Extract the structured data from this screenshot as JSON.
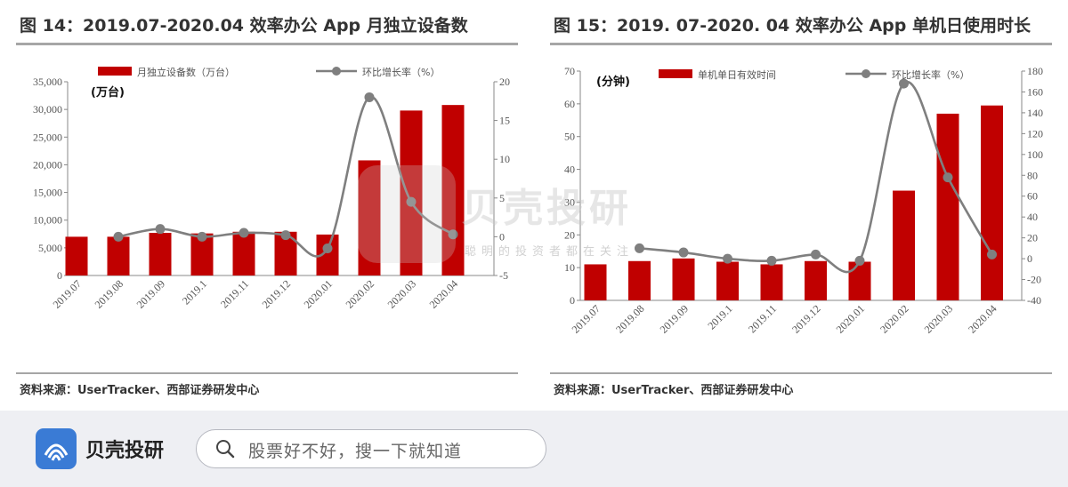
{
  "colors": {
    "bar": "#c00000",
    "line": "#7f7f7f",
    "axis": "#888888"
  },
  "watermark": {
    "name": "贝壳投研",
    "slogan": "聪明的投资者都在关注"
  },
  "footer": {
    "brand_name": "贝壳投研",
    "search_placeholder": "股票好不好，搜一下就知道"
  },
  "panels": [
    {
      "title": "图 14：2019.07-2020.04 效率办公 App 月独立设备数",
      "source": "资料来源：UserTracker、西部证券研发中心",
      "unit_label": "(万台)"
    },
    {
      "title": "图 15：2019. 07-2020. 04 效率办公 App 单机日使用时长",
      "source": "资料来源：UserTracker、西部证券研发中心",
      "unit_label": "(分钟)"
    }
  ],
  "chart_data": [
    {
      "type": "bar",
      "categories": [
        "2019.07",
        "2019.08",
        "2019.09",
        "2019.1",
        "2019.11",
        "2019.12",
        "2020.01",
        "2020.02",
        "2020.03",
        "2020.04"
      ],
      "series": [
        {
          "name": "月独立设备数（万台）",
          "type": "bar",
          "axis": "left",
          "values": [
            7000,
            7000,
            7700,
            7600,
            7900,
            7900,
            7400,
            20800,
            29800,
            30800
          ]
        },
        {
          "name": "环比增长率（%）",
          "type": "line",
          "axis": "right",
          "values": [
            null,
            0,
            1,
            0,
            0.5,
            0.2,
            -1.5,
            18,
            4.5,
            0.3
          ]
        }
      ],
      "y_left": {
        "range": [
          0,
          35000
        ],
        "ticks": [
          "0",
          "5,000",
          "10,000",
          "15,000",
          "20,000",
          "25,000",
          "30,000",
          "35,000"
        ]
      },
      "y_right": {
        "range": [
          -5,
          20
        ],
        "ticks": [
          "-5",
          "0",
          "5",
          "10",
          "15",
          "20"
        ]
      },
      "legend": {
        "position": "top"
      }
    },
    {
      "type": "bar",
      "categories": [
        "2019.07",
        "2019.08",
        "2019.09",
        "2019.1",
        "2019.11",
        "2019.12",
        "2020.01",
        "2020.02",
        "2020.03",
        "2020.04"
      ],
      "series": [
        {
          "name": "单机单日有效时间",
          "type": "bar",
          "axis": "left",
          "values": [
            11,
            12,
            12.8,
            11.8,
            11,
            12,
            11.8,
            33.5,
            57,
            59.5
          ]
        },
        {
          "name": "环比增长率（%）",
          "type": "line",
          "axis": "right",
          "values": [
            null,
            10,
            6,
            0,
            -2,
            4,
            -2,
            168,
            78,
            4
          ]
        }
      ],
      "y_left": {
        "range": [
          0,
          70
        ],
        "ticks": [
          "0",
          "10",
          "20",
          "30",
          "40",
          "50",
          "60",
          "70"
        ]
      },
      "y_right": {
        "range": [
          -40,
          180
        ],
        "ticks": [
          "-40",
          "-20",
          "0",
          "20",
          "40",
          "60",
          "80",
          "100",
          "120",
          "140",
          "160",
          "180"
        ]
      },
      "legend": {
        "position": "top"
      }
    }
  ]
}
